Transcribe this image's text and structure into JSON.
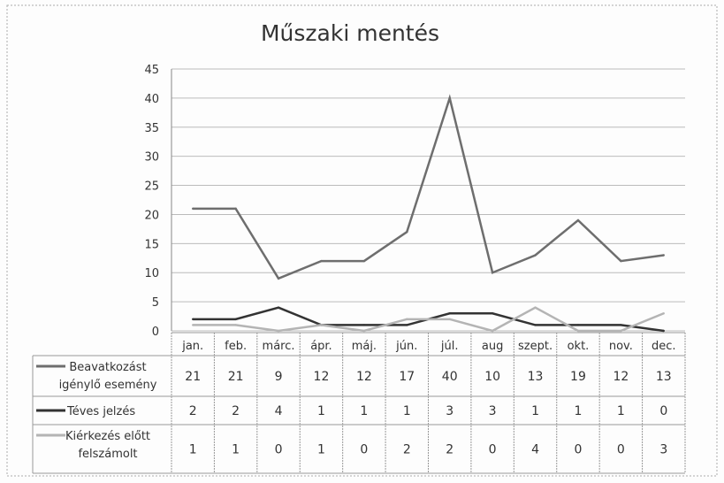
{
  "chart_data": {
    "type": "line",
    "title": "Műszaki mentés",
    "categories": [
      "jan.",
      "feb.",
      "márc.",
      "ápr.",
      "máj.",
      "jún.",
      "júl.",
      "aug",
      "szept.",
      "okt.",
      "nov.",
      "dec."
    ],
    "ylim": [
      0,
      45
    ],
    "yticks": [
      0,
      5,
      10,
      15,
      20,
      25,
      30,
      35,
      40,
      45
    ],
    "grid": true,
    "legend": "data-table",
    "series": [
      {
        "name": "Beavatkozást igénylő esemény",
        "name_lines": [
          "Beavatkozást",
          "igénylő esemény"
        ],
        "color": "#6e6e6e",
        "values": [
          21,
          21,
          9,
          12,
          12,
          17,
          40,
          10,
          13,
          19,
          12,
          13
        ]
      },
      {
        "name": "Téves jelzés",
        "name_lines": [
          "Téves jelzés"
        ],
        "color": "#333333",
        "values": [
          2,
          2,
          4,
          1,
          1,
          1,
          3,
          3,
          1,
          1,
          1,
          0
        ]
      },
      {
        "name": "Kiérkezés előtt felszámolt",
        "name_lines": [
          "Kiérkezés előtt",
          "felszámolt"
        ],
        "color": "#b4b4b4",
        "values": [
          1,
          1,
          0,
          1,
          0,
          2,
          2,
          0,
          4,
          0,
          0,
          3
        ]
      }
    ]
  }
}
